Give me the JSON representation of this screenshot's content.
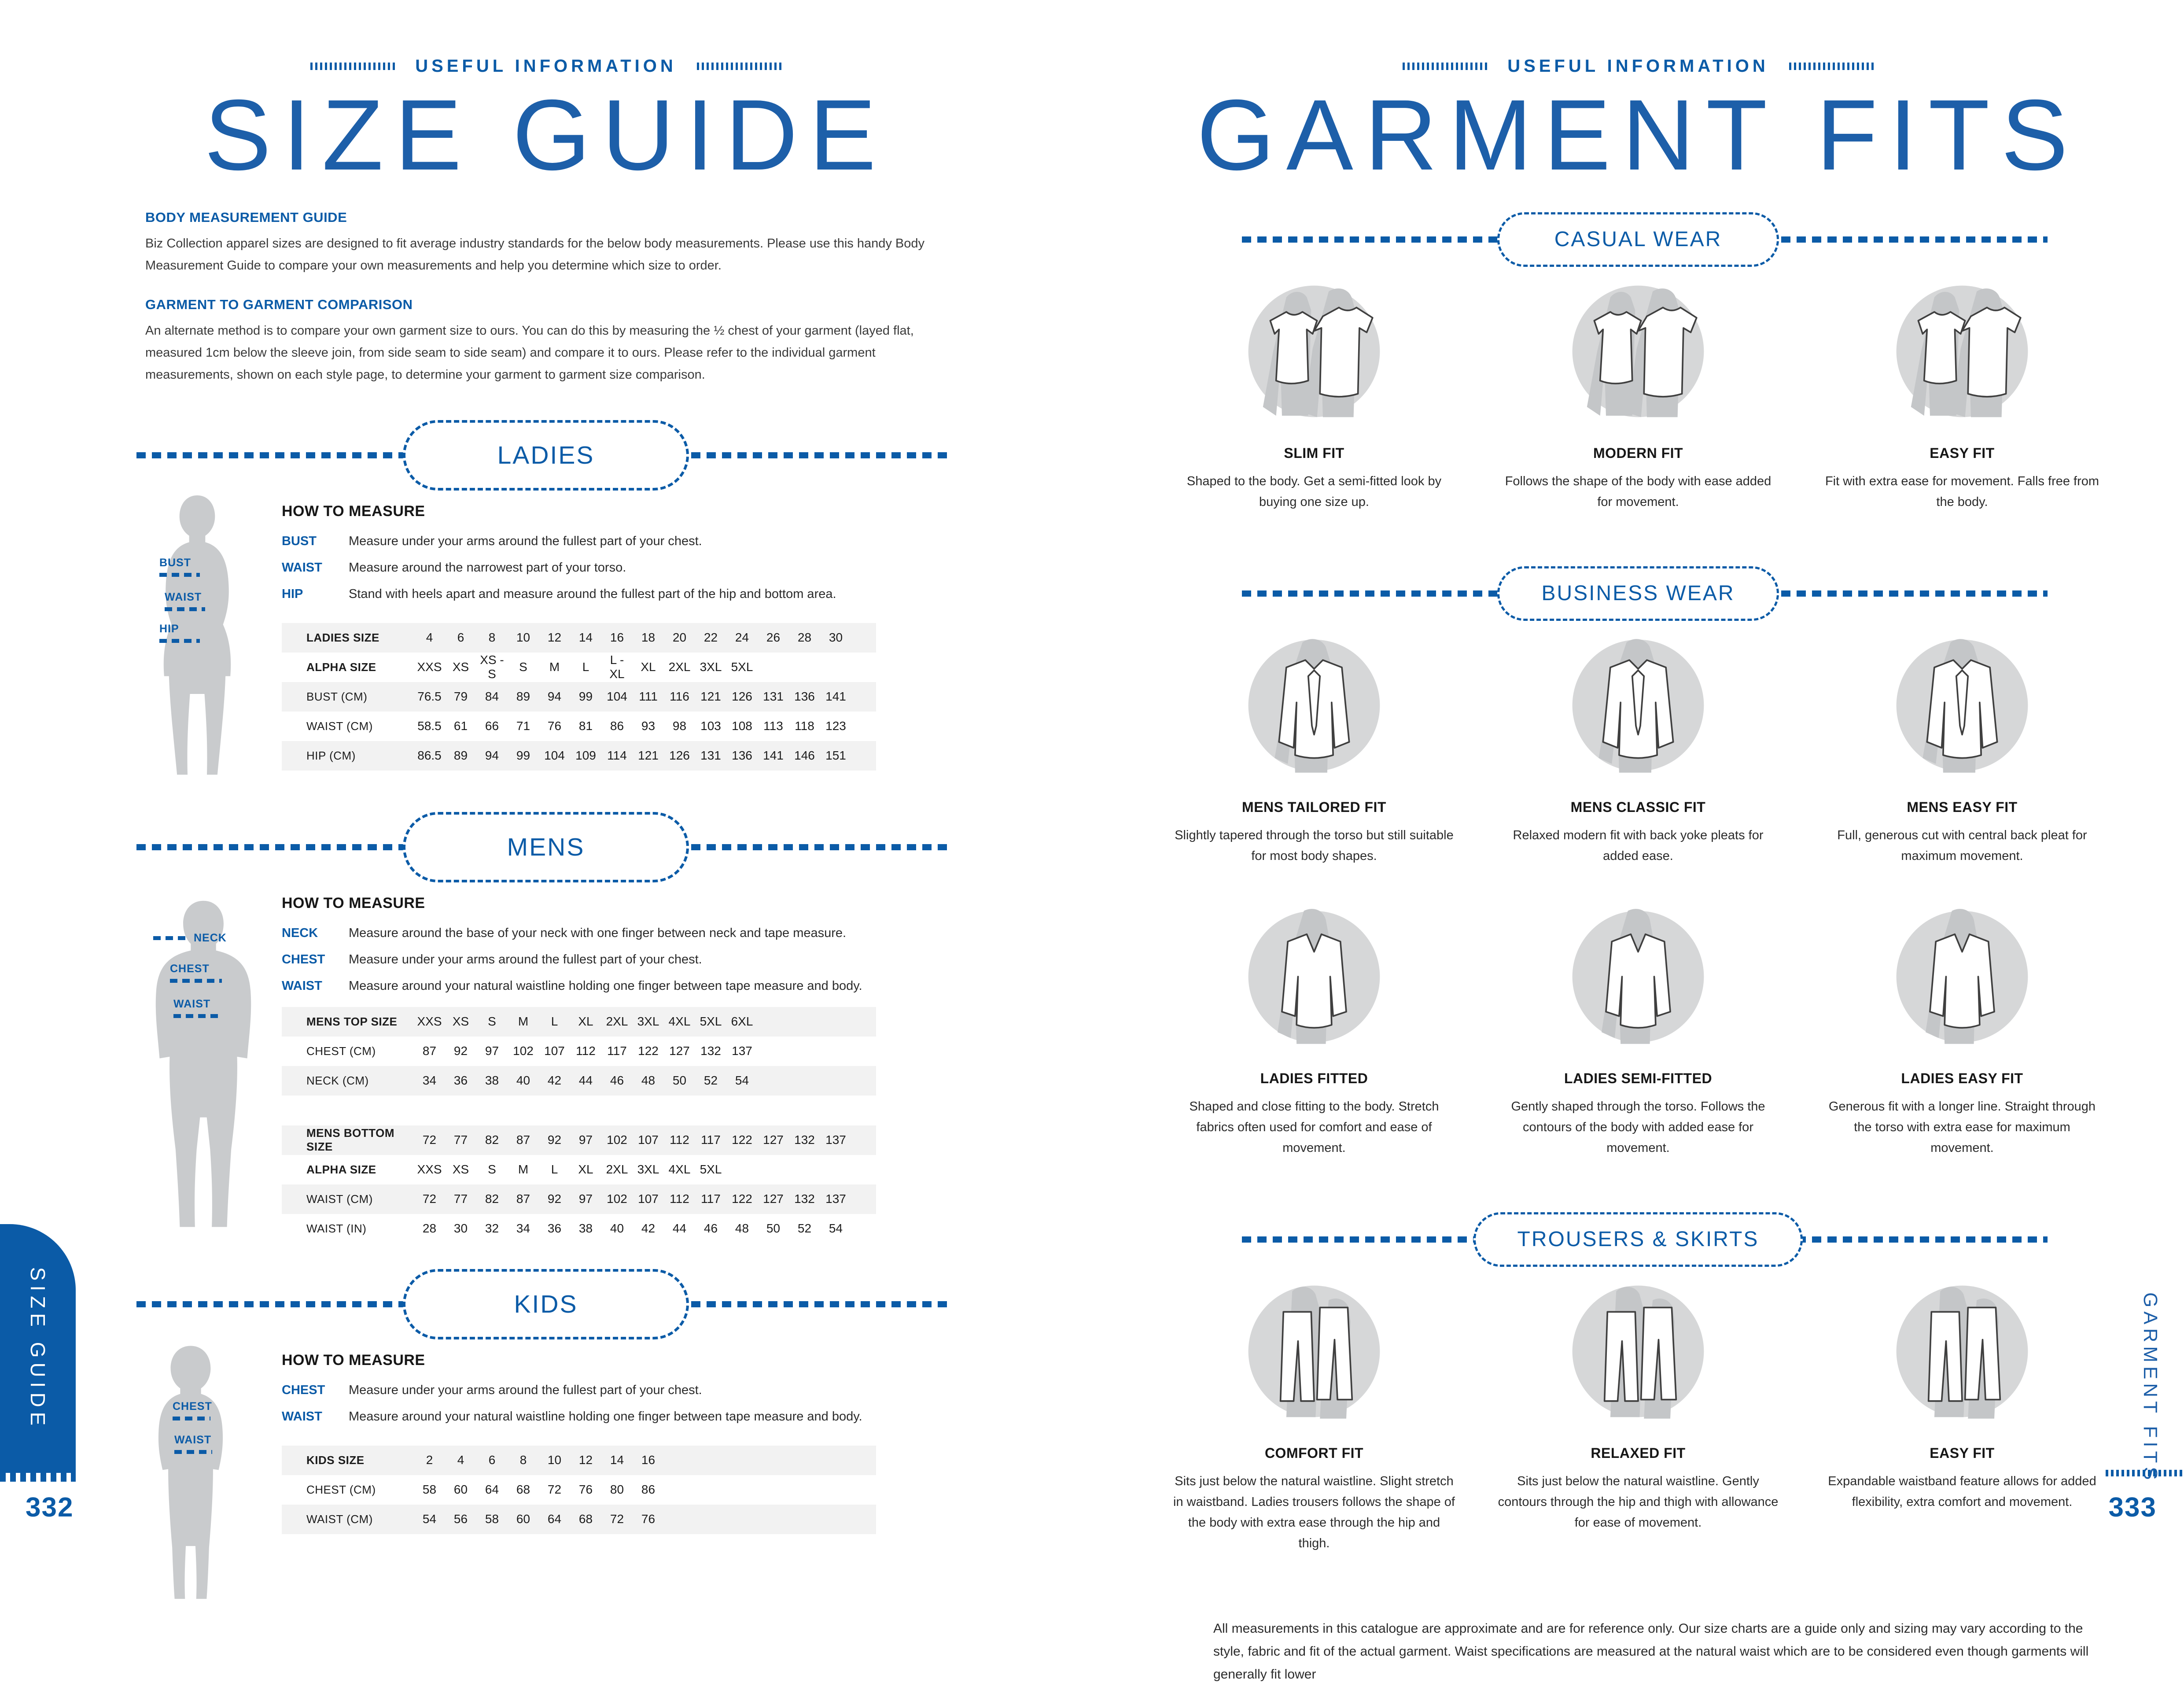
{
  "colors": {
    "accent_blue": "#0b5ba7",
    "title_blue": "#1d5fa9",
    "silhouette_gray": "#c9cbcd",
    "row_stripe": "#f2f2f2"
  },
  "left": {
    "eyebrow": "USEFUL INFORMATION",
    "title": "SIZE GUIDE",
    "body_measurement": {
      "heading": "BODY MEASUREMENT GUIDE",
      "text": "Biz Collection apparel sizes are designed to fit average industry standards for the below body measurements. Please use this handy Body Measurement Guide to compare your own measurements and help you determine which size to order."
    },
    "garment_comparison": {
      "heading": "GARMENT TO GARMENT COMPARISON",
      "text": "An alternate method is to compare your own garment size to ours. You can do this by measuring the ½ chest of your garment (layed flat, measured 1cm below the sleeve join, from side seam to side seam) and compare it to ours. Please refer to the individual garment measurements, shown on each style page, to determine your garment to garment size comparison."
    },
    "how_to_measure_label": "HOW TO MEASURE",
    "ladies": {
      "badge": "LADIES",
      "figure_labels": [
        "BUST",
        "WAIST",
        "HIP"
      ],
      "measures": [
        {
          "label": "BUST",
          "text": "Measure under your arms around the fullest part of your chest."
        },
        {
          "label": "WAIST",
          "text": "Measure around the narrowest part of your torso."
        },
        {
          "label": "HIP",
          "text": "Stand with heels apart and measure around the fullest part of the hip and bottom area."
        }
      ],
      "table": [
        {
          "label": "LADIES SIZE",
          "bold": true,
          "values": [
            "4",
            "6",
            "8",
            "10",
            "12",
            "14",
            "16",
            "18",
            "20",
            "22",
            "24",
            "26",
            "28",
            "30"
          ]
        },
        {
          "label": "ALPHA SIZE",
          "bold": true,
          "values": [
            "XXS",
            "XS",
            "XS - S",
            "S",
            "M",
            "L",
            "L - XL",
            "XL",
            "2XL",
            "3XL",
            "5XL"
          ]
        },
        {
          "label": "BUST (CM)",
          "bold": false,
          "values": [
            "76.5",
            "79",
            "84",
            "89",
            "94",
            "99",
            "104",
            "111",
            "116",
            "121",
            "126",
            "131",
            "136",
            "141"
          ]
        },
        {
          "label": "WAIST (CM)",
          "bold": false,
          "values": [
            "58.5",
            "61",
            "66",
            "71",
            "76",
            "81",
            "86",
            "93",
            "98",
            "103",
            "108",
            "113",
            "118",
            "123"
          ]
        },
        {
          "label": "HIP (CM)",
          "bold": false,
          "values": [
            "86.5",
            "89",
            "94",
            "99",
            "104",
            "109",
            "114",
            "121",
            "126",
            "131",
            "136",
            "141",
            "146",
            "151"
          ]
        }
      ]
    },
    "mens": {
      "badge": "MENS",
      "figure_labels": [
        "NECK",
        "CHEST",
        "WAIST"
      ],
      "measures": [
        {
          "label": "NECK",
          "text": "Measure around the base of your neck with one finger between neck and tape measure."
        },
        {
          "label": "CHEST",
          "text": "Measure under your arms around the fullest part of your chest."
        },
        {
          "label": "WAIST",
          "text": "Measure around your natural waistline holding one finger between tape measure and body."
        }
      ],
      "top_table": [
        {
          "label": "MENS TOP SIZE",
          "bold": true,
          "values": [
            "XXS",
            "XS",
            "S",
            "M",
            "L",
            "XL",
            "2XL",
            "3XL",
            "4XL",
            "5XL",
            "6XL"
          ]
        },
        {
          "label": "CHEST (CM)",
          "bold": false,
          "values": [
            "87",
            "92",
            "97",
            "102",
            "107",
            "112",
            "117",
            "122",
            "127",
            "132",
            "137"
          ]
        },
        {
          "label": "NECK (CM)",
          "bold": false,
          "values": [
            "34",
            "36",
            "38",
            "40",
            "42",
            "44",
            "46",
            "48",
            "50",
            "52",
            "54"
          ]
        }
      ],
      "bottom_table": [
        {
          "label": "MENS BOTTOM  SIZE",
          "bold": true,
          "values": [
            "72",
            "77",
            "82",
            "87",
            "92",
            "97",
            "102",
            "107",
            "112",
            "117",
            "122",
            "127",
            "132",
            "137"
          ]
        },
        {
          "label": "ALPHA SIZE",
          "bold": true,
          "values": [
            "XXS",
            "XS",
            "S",
            "M",
            "L",
            "XL",
            "2XL",
            "3XL",
            "4XL",
            "5XL"
          ]
        },
        {
          "label": "WAIST (CM)",
          "bold": false,
          "values": [
            "72",
            "77",
            "82",
            "87",
            "92",
            "97",
            "102",
            "107",
            "112",
            "117",
            "122",
            "127",
            "132",
            "137"
          ]
        },
        {
          "label": "WAIST (IN)",
          "bold": false,
          "values": [
            "28",
            "30",
            "32",
            "34",
            "36",
            "38",
            "40",
            "42",
            "44",
            "46",
            "48",
            "50",
            "52",
            "54"
          ]
        }
      ]
    },
    "kids": {
      "badge": "KIDS",
      "figure_labels": [
        "CHEST",
        "WAIST"
      ],
      "measures": [
        {
          "label": "CHEST",
          "text": "Measure under your arms around the fullest part of your chest."
        },
        {
          "label": "WAIST",
          "text": "Measure around your natural waistline holding one finger between tape measure and body."
        }
      ],
      "table": [
        {
          "label": "KIDS SIZE",
          "bold": true,
          "values": [
            "2",
            "4",
            "6",
            "8",
            "10",
            "12",
            "14",
            "16"
          ]
        },
        {
          "label": "CHEST (CM)",
          "bold": false,
          "values": [
            "58",
            "60",
            "64",
            "68",
            "72",
            "76",
            "80",
            "86"
          ]
        },
        {
          "label": "WAIST (CM)",
          "bold": false,
          "values": [
            "54",
            "56",
            "58",
            "60",
            "64",
            "68",
            "72",
            "76"
          ]
        }
      ]
    },
    "tab_label": "SIZE GUIDE",
    "page_number": "332"
  },
  "right": {
    "eyebrow": "USEFUL INFORMATION",
    "title": "GARMENT FITS",
    "groups": [
      {
        "badge": "CASUAL WEAR",
        "rows": [
          [
            {
              "name": "SLIM FIT",
              "icon": "tees",
              "icon_name": "tshirt-pair-icon",
              "desc": "Shaped to the body. Get a semi-fitted look by buying one size up."
            },
            {
              "name": "MODERN FIT",
              "icon": "tees",
              "icon_name": "tshirt-pair-icon",
              "desc": "Follows the shape of the body with ease added for movement."
            },
            {
              "name": "EASY FIT",
              "icon": "tees",
              "icon_name": "tshirt-pair-icon",
              "desc": "Fit with extra ease for movement. Falls free from the body."
            }
          ]
        ]
      },
      {
        "badge": "BUSINESS WEAR",
        "rows": [
          [
            {
              "name": "MENS TAILORED FIT",
              "icon": "shirt",
              "icon_name": "business-shirt-icon",
              "desc": "Slightly tapered through the torso but still suitable for most body shapes."
            },
            {
              "name": "MENS CLASSIC FIT",
              "icon": "shirt",
              "icon_name": "business-shirt-icon",
              "desc": "Relaxed  modern fit with back yoke pleats for added ease."
            },
            {
              "name": "MENS EASY FIT",
              "icon": "shirt",
              "icon_name": "business-shirt-icon",
              "desc": "Full, generous cut with central back pleat for maximum movement."
            }
          ],
          [
            {
              "name": "LADIES FITTED",
              "icon": "top",
              "icon_name": "ladies-top-icon",
              "desc": "Shaped and close fitting to the body. Stretch fabrics often used for comfort and ease of movement."
            },
            {
              "name": "LADIES SEMI-FITTED",
              "icon": "top",
              "icon_name": "ladies-top-icon",
              "desc": "Gently shaped through the torso. Follows the contours of the body with added ease for movement."
            },
            {
              "name": "LADIES EASY FIT",
              "icon": "top",
              "icon_name": "ladies-top-icon",
              "desc": "Generous fit with a longer line. Straight through the torso with extra ease for maximum movement."
            }
          ]
        ]
      },
      {
        "badge": "TROUSERS & SKIRTS",
        "rows": [
          [
            {
              "name": "COMFORT FIT",
              "icon": "trousers",
              "icon_name": "trousers-icon",
              "desc": "Sits just below the natural waistline. Slight stretch in waistband. Ladies trousers follows the shape of the body with extra ease through the hip and thigh."
            },
            {
              "name": "RELAXED FIT",
              "icon": "trousers",
              "icon_name": "trousers-icon",
              "desc": "Sits just below the natural waistline. Gently contours through the hip and thigh with allowance for ease of movement."
            },
            {
              "name": "EASY FIT",
              "icon": "trousers",
              "icon_name": "trousers-icon",
              "desc": "Expandable waistband feature allows for added flexibility, extra comfort and movement."
            }
          ]
        ]
      }
    ],
    "disclaimer": "All measurements in this catalogue are approximate and are for reference only. Our size charts are a guide only and sizing may vary according to the style, fabric and fit of the actual garment. Waist specifications are measured at the natural waist which are to be considered even though garments will generally fit lower",
    "side_label": "GARMENT FITS",
    "page_number": "333"
  }
}
